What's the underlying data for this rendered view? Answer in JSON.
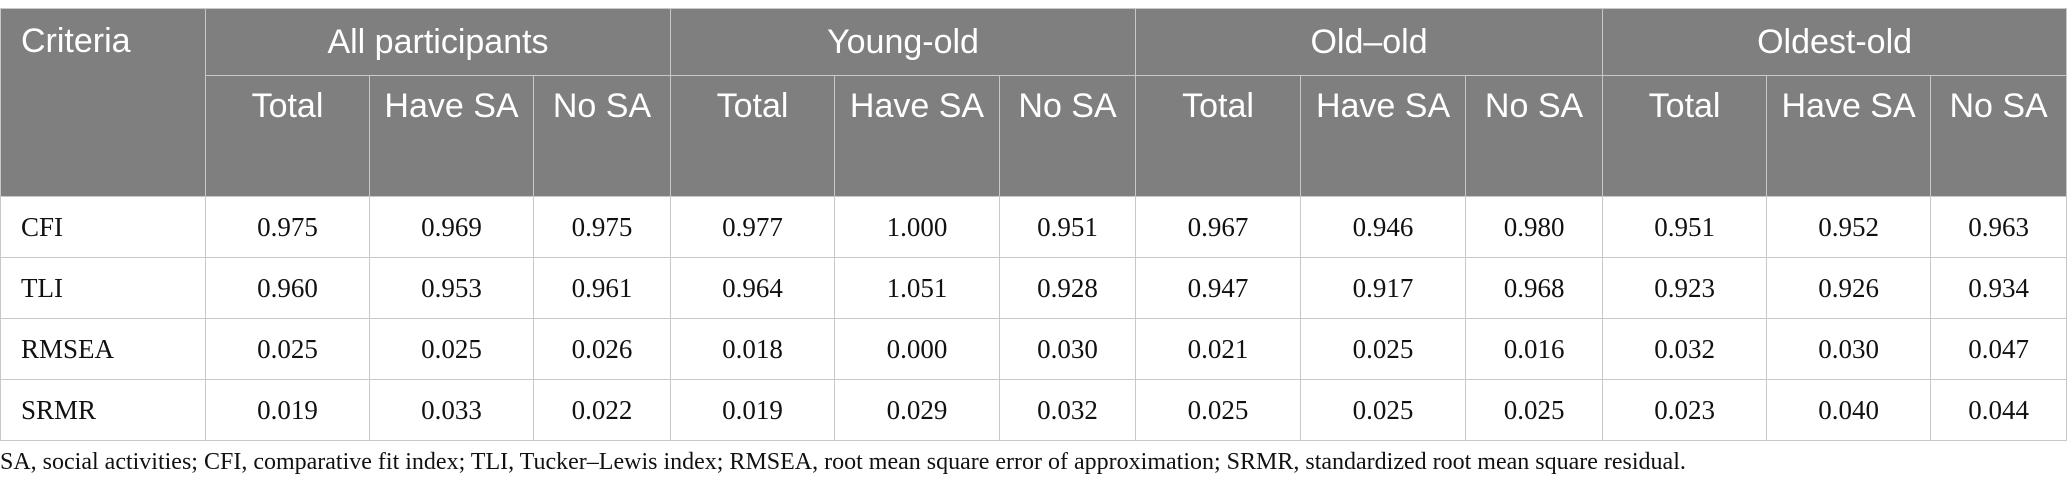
{
  "table": {
    "criteria_header": "Criteria",
    "groups": [
      "All participants",
      "Young-old",
      "Old–old",
      "Oldest-old"
    ],
    "subheaders": [
      "Total",
      "Have SA",
      "No SA"
    ],
    "rows": [
      {
        "label": "CFI",
        "values": [
          "0.975",
          "0.969",
          "0.975",
          "0.977",
          "1.000",
          "0.951",
          "0.967",
          "0.946",
          "0.980",
          "0.951",
          "0.952",
          "0.963"
        ]
      },
      {
        "label": "TLI",
        "values": [
          "0.960",
          "0.953",
          "0.961",
          "0.964",
          "1.051",
          "0.928",
          "0.947",
          "0.917",
          "0.968",
          "0.923",
          "0.926",
          "0.934"
        ]
      },
      {
        "label": "RMSEA",
        "values": [
          "0.025",
          "0.025",
          "0.026",
          "0.018",
          "0.000",
          "0.030",
          "0.021",
          "0.025",
          "0.016",
          "0.032",
          "0.030",
          "0.047"
        ]
      },
      {
        "label": "SRMR",
        "values": [
          "0.019",
          "0.033",
          "0.022",
          "0.019",
          "0.029",
          "0.032",
          "0.025",
          "0.025",
          "0.025",
          "0.023",
          "0.040",
          "0.044"
        ]
      }
    ]
  },
  "footnote": "SA, social activities; CFI, comparative fit index; TLI, Tucker–Lewis index; RMSEA, root mean square error of approximation; SRMR, standardized root mean square residual."
}
